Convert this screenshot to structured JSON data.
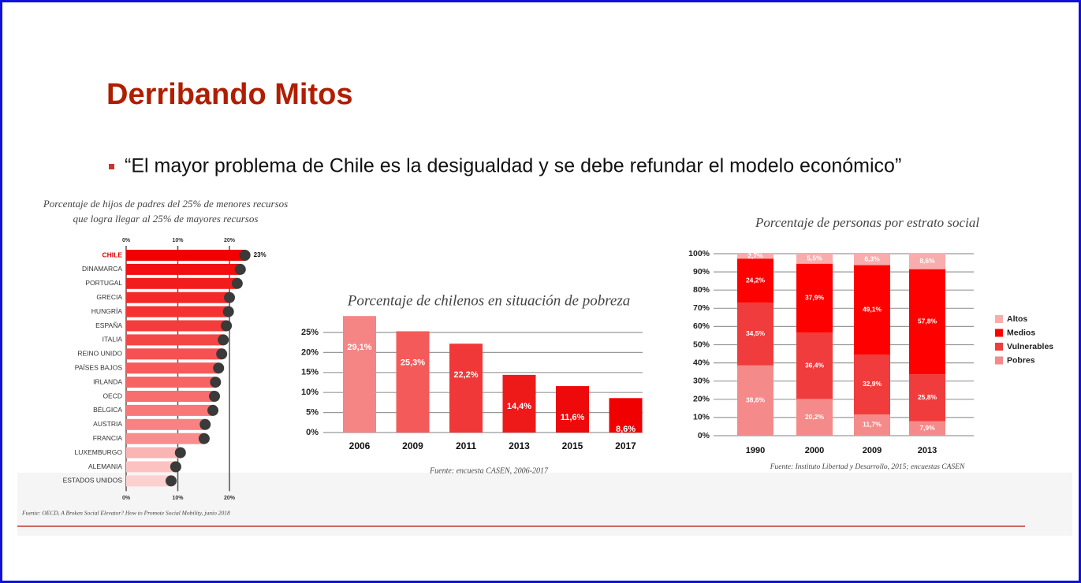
{
  "title": "Derribando Mitos",
  "bullet": "“El mayor problema de Chile es la desigualdad y se debe refundar el modelo económico”",
  "chart_data": [
    {
      "type": "barh",
      "title": [
        "Porcentaje de hijos de padres del 25% de menores recursos",
        "que logra llegar al 25% de mayores recursos"
      ],
      "categories": [
        "CHILE",
        "DINAMARCA",
        "PORTUGAL",
        "GRECIA",
        "HUNGRÍA",
        "ESPAÑA",
        "ITALIA",
        "REINO UNIDO",
        "PAÍSES BAJOS",
        "IRLANDA",
        "OECD",
        "BÉLGICA",
        "AUSTRIA",
        "FRANCIA",
        "LUXEMBURGO",
        "ALEMANIA",
        "ESTADOS UNIDOS"
      ],
      "values": [
        23,
        22.1,
        21.5,
        20,
        19.8,
        19.4,
        18.8,
        18.5,
        17.9,
        17.3,
        17.1,
        16.8,
        15.3,
        15.1,
        10.5,
        9.6,
        8.7
      ],
      "value_labels": [
        "23%",
        null,
        null,
        null,
        null,
        null,
        null,
        null,
        null,
        null,
        null,
        null,
        null,
        null,
        null,
        null,
        null
      ],
      "colors": [
        "#f20000",
        "#f20f0f",
        "#f31c1c",
        "#f42828",
        "#f43232",
        "#f53c3c",
        "#f54646",
        "#f65050",
        "#f65a5a",
        "#f76464",
        "#f76e6e",
        "#f87878",
        "#f88282",
        "#f98c8c",
        "#fbb4b4",
        "#fcc2c2",
        "#fdd0d0"
      ],
      "xlim": [
        0,
        25
      ],
      "xticks": [
        {
          "value": 0,
          "label": "0%"
        },
        {
          "value": 10,
          "label": "10%"
        },
        {
          "value": 20,
          "label": "20%"
        }
      ],
      "source": "Fuente: OECD, A Broken Social Elevator? How to Promote Social Mobility, junio 2018"
    },
    {
      "type": "bar",
      "title": "Porcentaje de chilenos en situación de pobreza",
      "categories": [
        "2006",
        "2009",
        "2011",
        "2013",
        "2015",
        "2017"
      ],
      "values": [
        29.1,
        25.3,
        22.2,
        14.4,
        11.6,
        8.6
      ],
      "value_labels": [
        "29,1%",
        "25,3%",
        "22,2%",
        "14,4%",
        "11,6%",
        "8,6%"
      ],
      "colors": [
        "#f58585",
        "#f45a5a",
        "#f13838",
        "#ee1a1a",
        "#ee0a0a",
        "#f00000"
      ],
      "ylim": [
        0,
        25
      ],
      "yticks": [
        {
          "value": 0,
          "label": "0%"
        },
        {
          "value": 5,
          "label": "5%"
        },
        {
          "value": 10,
          "label": "10%"
        },
        {
          "value": 15,
          "label": "15%"
        },
        {
          "value": 20,
          "label": "20%"
        },
        {
          "value": 25,
          "label": "25%"
        }
      ],
      "grid": true,
      "source": "Fuente: encuesta CASEN, 2006-2017"
    },
    {
      "type": "stacked_bar",
      "title": "Porcentaje de personas por estrato social",
      "categories": [
        "1990",
        "2000",
        "2009",
        "2013"
      ],
      "series": [
        {
          "name": "Pobres",
          "color": "#f58a8a",
          "values": [
            38.6,
            20.2,
            11.7,
            7.9
          ],
          "value_labels": [
            "38,6%",
            "20,2%",
            "11,7%",
            "7,9%"
          ]
        },
        {
          "name": "Vulnerables",
          "color": "#f03c3c",
          "values": [
            34.5,
            36.4,
            32.9,
            25.8
          ],
          "value_labels": [
            "34,5%",
            "36,4%",
            "32,9%",
            "25,8%"
          ]
        },
        {
          "name": "Medios",
          "color": "#ff0000",
          "values": [
            24.2,
            37.9,
            49.1,
            57.8
          ],
          "value_labels": [
            "24,2%",
            "37,9%",
            "49,1%",
            "57,8%"
          ]
        },
        {
          "name": "Altos",
          "color": "#f9acac",
          "values": [
            2.7,
            5.5,
            6.3,
            8.6
          ],
          "value_labels": [
            "2,7%",
            "5,5%",
            "6,3%",
            "8,6%"
          ]
        }
      ],
      "ylim": [
        0,
        100
      ],
      "yticks": [
        {
          "value": 0,
          "label": "0%"
        },
        {
          "value": 10,
          "label": "10%"
        },
        {
          "value": 20,
          "label": "20%"
        },
        {
          "value": 30,
          "label": "30%"
        },
        {
          "value": 40,
          "label": "40%"
        },
        {
          "value": 50,
          "label": "50%"
        },
        {
          "value": 60,
          "label": "60%"
        },
        {
          "value": 70,
          "label": "70%"
        },
        {
          "value": 80,
          "label": "80%"
        },
        {
          "value": 90,
          "label": "90%"
        },
        {
          "value": 100,
          "label": "100%"
        }
      ],
      "grid": true,
      "legend": "right",
      "source": "Fuente: Instituto Libertad y Desarrollo, 2015; encuestas CASEN"
    }
  ]
}
